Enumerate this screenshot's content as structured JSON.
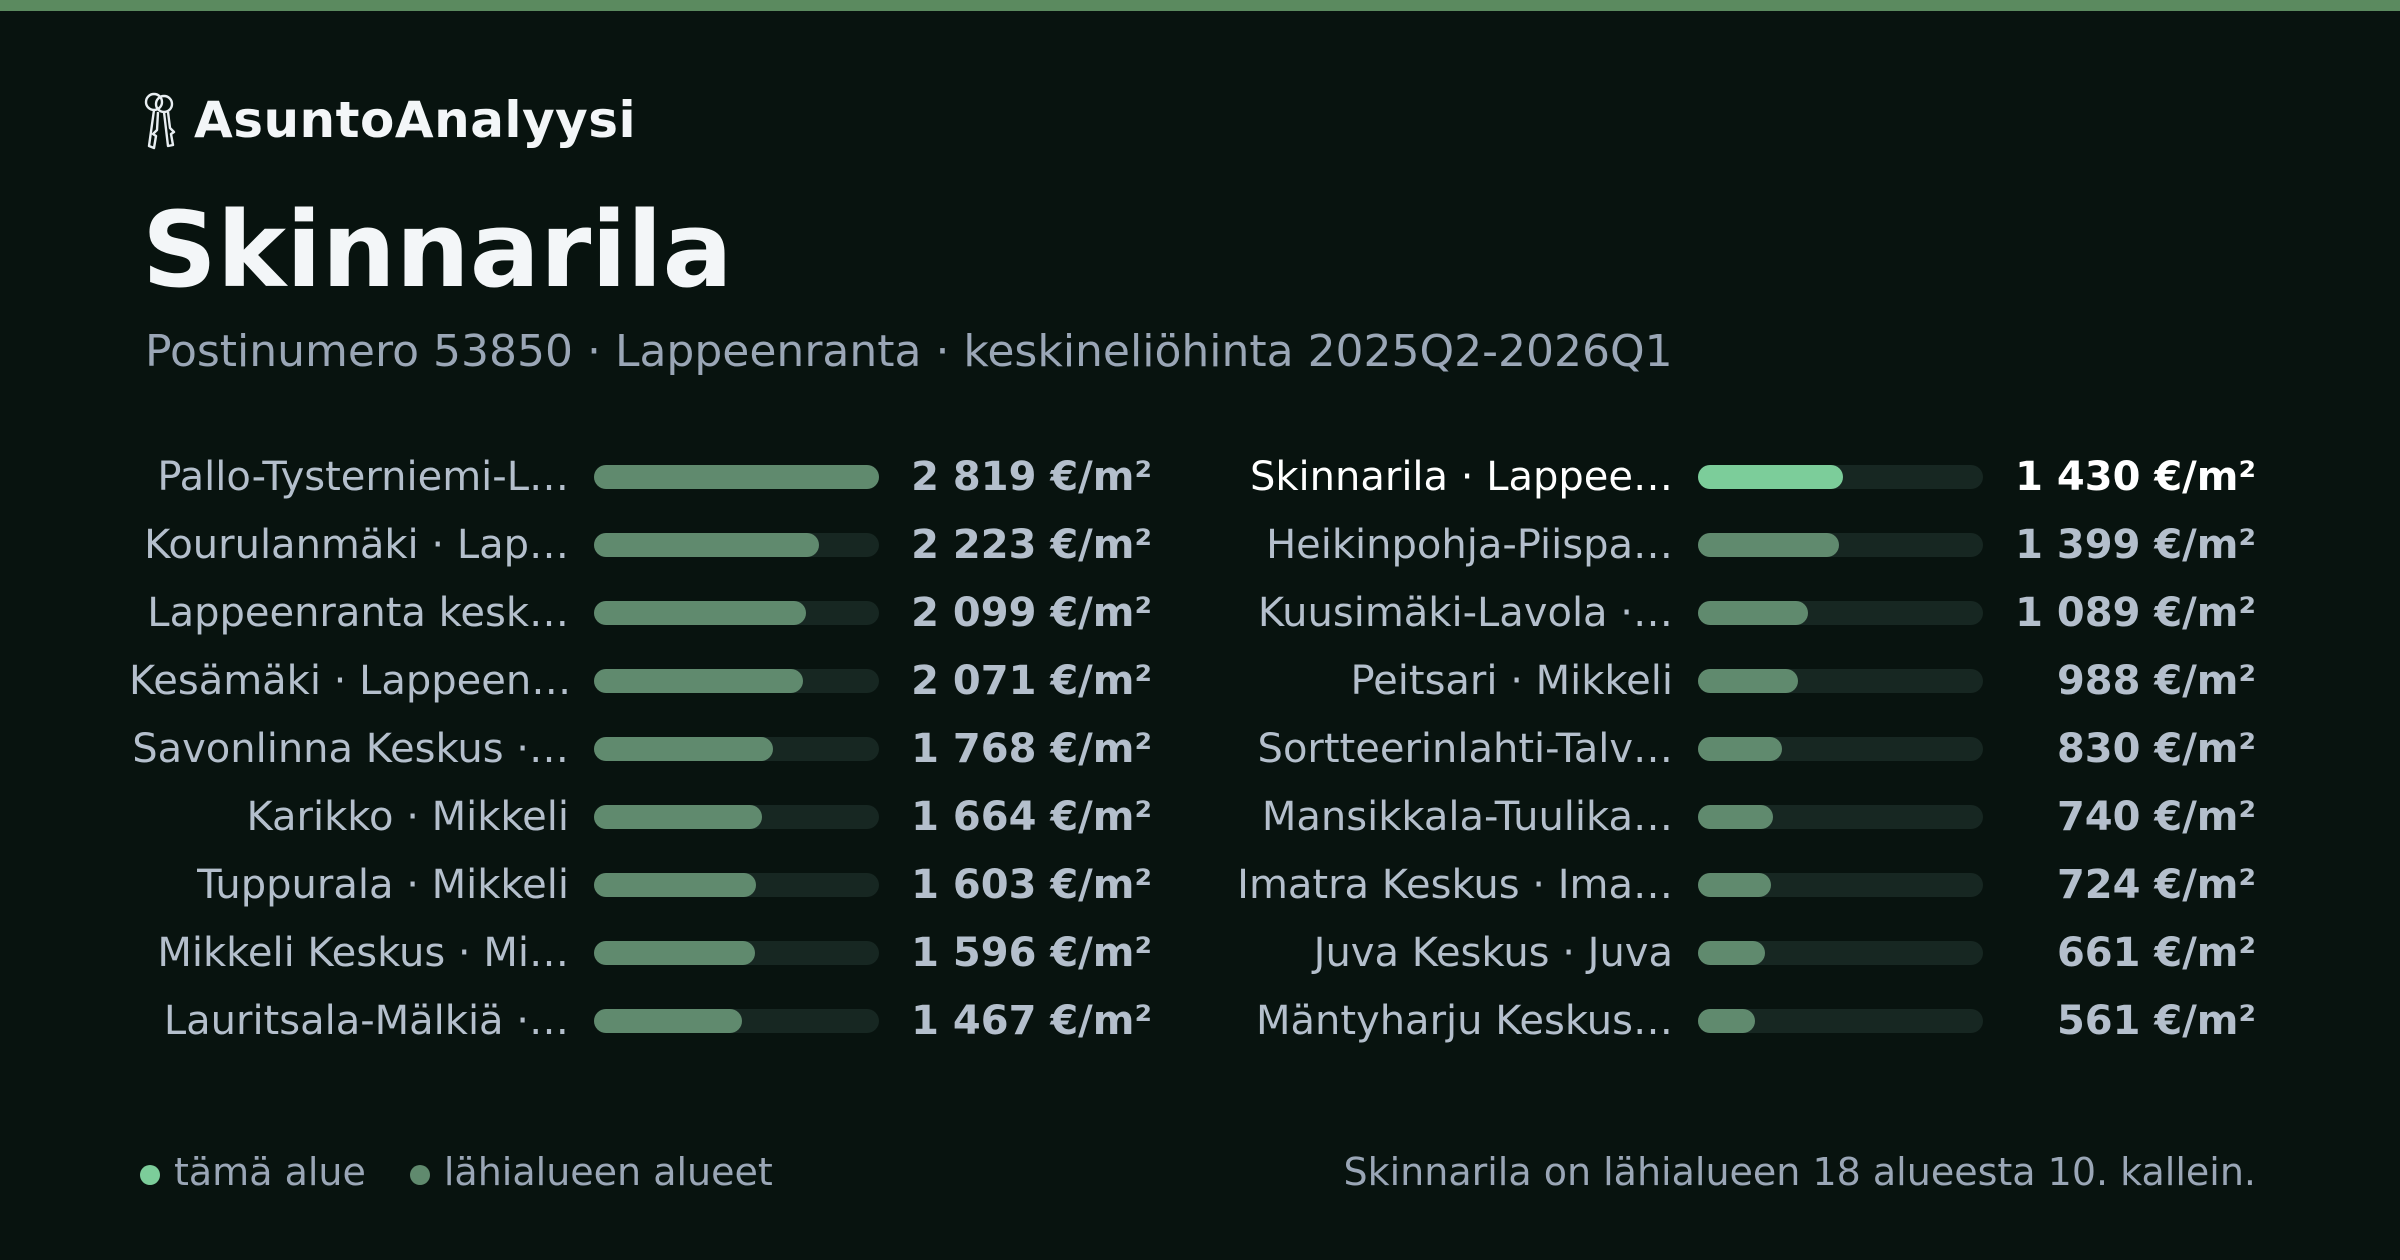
{
  "brand": {
    "name": "AsuntoAnalyysi",
    "icon": "keys-icon"
  },
  "title": "Skinnarila",
  "subtitle": "Postinumero 53850 · Lappeenranta · keskineliöhinta 2025Q2-2026Q1",
  "colors": {
    "background": "#08130f",
    "accent_stripe": "#5b8a5f",
    "highlight_bar": "#7ccd9a",
    "neighbor_bar": "#608a6e",
    "track": "#172722"
  },
  "chart_data": {
    "type": "bar",
    "orientation": "horizontal",
    "unit": "€/m²",
    "xlim": [
      0,
      2819
    ],
    "highlight_index": 9,
    "categories": [
      "Pallo-Tysterniemi-L…",
      "Kourulanmäki · Lap…",
      "Lappeenranta kesk…",
      "Kesämäki · Lappeen…",
      "Savonlinna Keskus ·…",
      "Karikko · Mikkeli",
      "Tuppurala · Mikkeli",
      "Mikkeli Keskus · Mi…",
      "Lauritsala-Mälkiä ·…",
      "Skinnarila · Lappee…",
      "Heikinpohja-Piispa…",
      "Kuusimäki-Lavola ·…",
      "Peitsari · Mikkeli",
      "Sortteerinlahti-Talv…",
      "Mansikkala-Tuulika…",
      "Imatra Keskus · Ima…",
      "Juva Keskus · Juva",
      "Mäntyharju Keskus…"
    ],
    "values": [
      2819,
      2223,
      2099,
      2071,
      1768,
      1664,
      1603,
      1596,
      1467,
      1430,
      1399,
      1089,
      988,
      830,
      740,
      724,
      661,
      561
    ],
    "value_labels": [
      "2 819 €/m²",
      "2 223 €/m²",
      "2 099 €/m²",
      "2 071 €/m²",
      "1 768 €/m²",
      "1 664 €/m²",
      "1 603 €/m²",
      "1 596 €/m²",
      "1 467 €/m²",
      "1 430 €/m²",
      "1 399 €/m²",
      "1 089 €/m²",
      "988 €/m²",
      "830 €/m²",
      "740 €/m²",
      "724 €/m²",
      "661 €/m²",
      "561 €/m²"
    ],
    "legend": [
      {
        "label": "tämä alue",
        "color": "#7ccd9a"
      },
      {
        "label": "lähialueen alueet",
        "color": "#608a6e"
      }
    ],
    "legend_placement": "bottom-left"
  },
  "footnote": "Skinnarila on lähialueen 18 alueesta 10. kallein."
}
